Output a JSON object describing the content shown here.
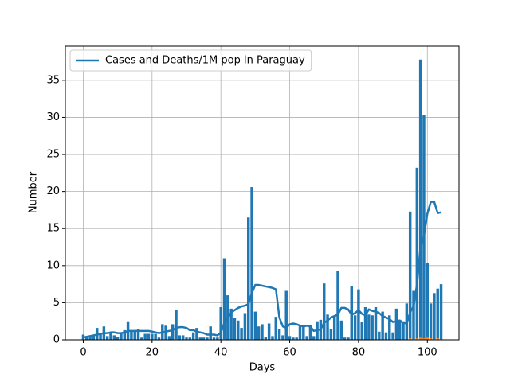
{
  "chart_data": {
    "type": "bar",
    "xlabel": "Days",
    "ylabel": "Number",
    "x": [
      0,
      1,
      2,
      3,
      4,
      5,
      6,
      7,
      8,
      9,
      10,
      11,
      12,
      13,
      14,
      15,
      16,
      17,
      18,
      19,
      20,
      21,
      22,
      23,
      24,
      25,
      26,
      27,
      28,
      29,
      30,
      31,
      32,
      33,
      34,
      35,
      36,
      37,
      38,
      39,
      40,
      41,
      42,
      43,
      44,
      45,
      46,
      47,
      48,
      49,
      50,
      51,
      52,
      53,
      54,
      55,
      56,
      57,
      58,
      59,
      60,
      61,
      62,
      63,
      64,
      65,
      66,
      67,
      68,
      69,
      70,
      71,
      72,
      73,
      74,
      75,
      76,
      77,
      78,
      79,
      80,
      81,
      82,
      83,
      84,
      85,
      86,
      87,
      88,
      89,
      90,
      91,
      92,
      93,
      94,
      95,
      96,
      97,
      98,
      99,
      100,
      101,
      102,
      103,
      104
    ],
    "series": [
      {
        "type": "bar",
        "color": "#1f77b4",
        "values": [
          0.7,
          0.5,
          0.5,
          0.7,
          1.6,
          0.7,
          1.8,
          0.5,
          0.9,
          0.6,
          0.4,
          0.9,
          1.3,
          2.5,
          1.1,
          1.3,
          1.5,
          0.3,
          0.8,
          0.8,
          0.8,
          0.8,
          0.3,
          2.1,
          1.9,
          0.5,
          2.1,
          4.0,
          0.6,
          0.6,
          0.3,
          0.3,
          1.0,
          1.6,
          0.3,
          0.3,
          0.3,
          1.8,
          0.3,
          0.3,
          4.4,
          11.0,
          6.0,
          4.2,
          3.0,
          2.6,
          1.6,
          3.6,
          16.5,
          20.6,
          3.8,
          1.8,
          2.1,
          0.4,
          2.2,
          0.5,
          3.1,
          1.5,
          0.6,
          6.6,
          0.5,
          0.3,
          0.3,
          1.8,
          1.8,
          0.5,
          2.0,
          0.5,
          2.5,
          2.7,
          7.6,
          3.4,
          1.5,
          3.2,
          9.3,
          2.6,
          0.3,
          0.3,
          7.3,
          3.3,
          6.8,
          2.4,
          4.4,
          3.4,
          3.3,
          4.4,
          1.1,
          3.8,
          1.0,
          3.3,
          1.0,
          4.2,
          2.7,
          2.5,
          4.9,
          17.3,
          6.6,
          23.2,
          37.8,
          30.3,
          10.4,
          4.9,
          6.3,
          6.9,
          7.5
        ]
      },
      {
        "type": "bar",
        "color": "#ff7f0e",
        "values": [
          0,
          0,
          0,
          0,
          0,
          0,
          0,
          0,
          0,
          0,
          0,
          0,
          0,
          0,
          0,
          0,
          0,
          0,
          0,
          0,
          0,
          0,
          0,
          0,
          0,
          0,
          0,
          0.1,
          0,
          0,
          0,
          0,
          0,
          0,
          0,
          0,
          0,
          0,
          0,
          0,
          0,
          0.1,
          0,
          0,
          0,
          0,
          0,
          0,
          0,
          0.1,
          0,
          0,
          0,
          0,
          0,
          0,
          0.1,
          0,
          0,
          0,
          0,
          0,
          0,
          0,
          0,
          0,
          0,
          0,
          0,
          0,
          0,
          0,
          0,
          0,
          0,
          0.1,
          0,
          0,
          0,
          0,
          0,
          0,
          0,
          0,
          0,
          0,
          0,
          0,
          0,
          0,
          0.1,
          0,
          0,
          0,
          0,
          0.2,
          0.1,
          0.2,
          0.3,
          0.2,
          0.3,
          0.2,
          0.1,
          0.2,
          0.1
        ]
      },
      {
        "type": "line",
        "name": "Cases and Deaths/1M pop in Paraguay",
        "color": "#1f77b4",
        "values": [
          0.3,
          0.4,
          0.5,
          0.6,
          0.7,
          0.8,
          0.9,
          0.9,
          1.0,
          1.0,
          0.9,
          0.9,
          1.0,
          1.2,
          1.2,
          1.2,
          1.2,
          1.2,
          1.2,
          1.2,
          1.1,
          1.0,
          0.9,
          1.0,
          1.1,
          1.2,
          1.3,
          1.6,
          1.7,
          1.7,
          1.6,
          1.3,
          1.3,
          1.1,
          1.0,
          0.9,
          0.7,
          0.7,
          0.7,
          0.6,
          1.0,
          2.3,
          3.0,
          3.7,
          4.0,
          4.3,
          4.5,
          4.6,
          4.8,
          6.3,
          7.4,
          7.4,
          7.3,
          7.2,
          7.1,
          7.0,
          6.8,
          3.0,
          1.8,
          1.6,
          2.1,
          2.2,
          2.1,
          1.9,
          1.8,
          1.9,
          1.8,
          1.2,
          1.3,
          1.4,
          2.3,
          2.6,
          3.0,
          3.2,
          3.4,
          4.3,
          4.3,
          4.1,
          3.4,
          3.6,
          4.0,
          3.5,
          3.3,
          4.1,
          3.9,
          3.8,
          3.6,
          3.2,
          3.0,
          2.8,
          2.4,
          2.5,
          2.6,
          2.3,
          2.2,
          3.7,
          4.5,
          7.5,
          12.5,
          14.0,
          17.0,
          18.6,
          18.6,
          17.1,
          17.2
        ]
      }
    ],
    "xlim": [
      -5.2,
      109.2
    ],
    "ylim": [
      0,
      39.6
    ],
    "xticks": [
      0,
      20,
      40,
      60,
      80,
      100
    ],
    "yticks": [
      0,
      5,
      10,
      15,
      20,
      25,
      30,
      35
    ],
    "grid": true,
    "legend": "upper left"
  }
}
